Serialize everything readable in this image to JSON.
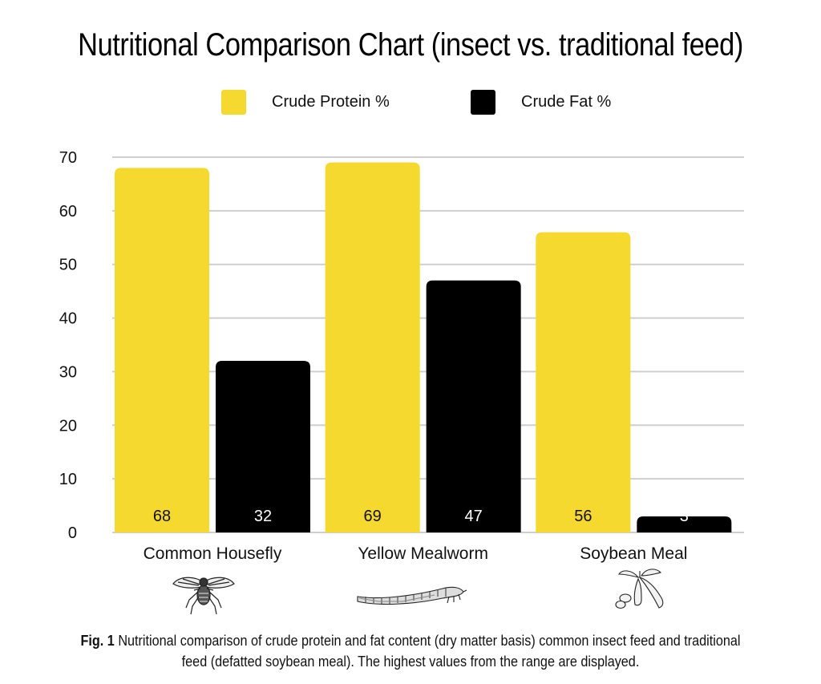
{
  "chart_data": {
    "type": "bar",
    "title": "Nutritional Comparison Chart (insect vs. traditional feed)",
    "categories": [
      "Common Housefly",
      "Yellow Mealworm",
      "Soybean Meal"
    ],
    "series": [
      {
        "name": "Crude Protein %",
        "values": [
          68,
          69,
          56
        ],
        "color": "#F5D92E"
      },
      {
        "name": "Crude Fat %",
        "values": [
          32,
          47,
          3
        ],
        "color": "#000000"
      }
    ],
    "ylim": [
      0,
      70
    ],
    "yticks": [
      0,
      10,
      20,
      30,
      40,
      50,
      60,
      70
    ],
    "grid": true,
    "legend_position": "top-center",
    "data_labels": true
  },
  "caption": {
    "prefix": "Fig. 1",
    "text": "Nutritional comparison of crude protein and fat content (dry matter basis) common insect feed and traditional feed (defatted soybean meal). The highest values from the range are displayed."
  },
  "icons": [
    "housefly-icon",
    "mealworm-icon",
    "soybean-icon"
  ]
}
